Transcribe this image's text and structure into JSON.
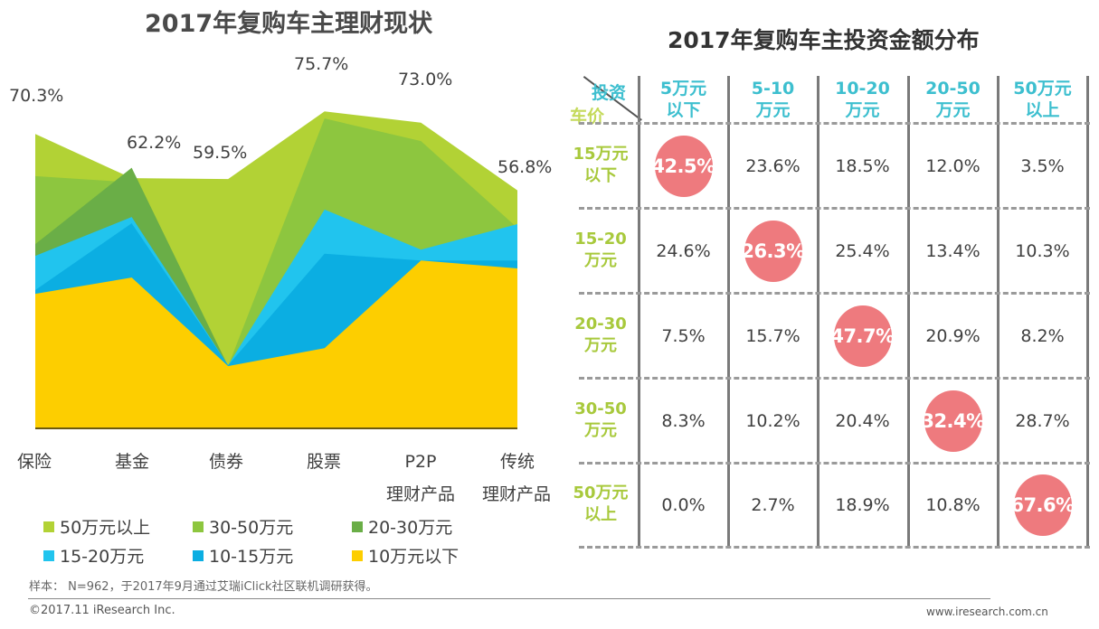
{
  "left_chart": {
    "title": "2017年复购车主理财现状"
  },
  "right_table": {
    "title": "2017年复购车主投资金额分布",
    "corner_top": "投资",
    "corner_bottom": "车价",
    "columns": [
      [
        "5万元",
        "以下"
      ],
      [
        "5-10",
        "万元"
      ],
      [
        "10-20",
        "万元"
      ],
      [
        "20-50",
        "万元"
      ],
      [
        "50万元",
        "以上"
      ]
    ],
    "rows": [
      {
        "label": [
          "15万元",
          "以下"
        ],
        "values": [
          "42.5%",
          "23.6%",
          "18.5%",
          "12.0%",
          "3.5%"
        ],
        "highlight": 0
      },
      {
        "label": [
          "15-20",
          "万元"
        ],
        "values": [
          "24.6%",
          "26.3%",
          "25.4%",
          "13.4%",
          "10.3%"
        ],
        "highlight": 1
      },
      {
        "label": [
          "20-30",
          "万元"
        ],
        "values": [
          "7.5%",
          "15.7%",
          "47.7%",
          "20.9%",
          "8.2%"
        ],
        "highlight": 2
      },
      {
        "label": [
          "30-50",
          "万元"
        ],
        "values": [
          "8.3%",
          "10.2%",
          "20.4%",
          "32.4%",
          "28.7%"
        ],
        "highlight": 3
      },
      {
        "label": [
          "50万元",
          "以上"
        ],
        "values": [
          "0.0%",
          "2.7%",
          "18.9%",
          "10.8%",
          "67.6%"
        ],
        "highlight": 4
      }
    ],
    "highlight_color": "#EE7A7E",
    "header_color": "#3DBFCF",
    "row_label_color": "#A8C93C"
  },
  "chart_data": [
    {
      "type": "area",
      "title": "2017年复购车主理财现状",
      "stacked": false,
      "categories": [
        [
          "保险"
        ],
        [
          "基金"
        ],
        [
          "债券"
        ],
        [
          "股票"
        ],
        [
          "P2P",
          "理财产品"
        ],
        [
          "传统",
          "理财产品"
        ]
      ],
      "peak_labels": [
        "70.3%",
        "62.2%",
        "59.5%",
        "75.7%",
        "73.0%",
        "56.8%"
      ],
      "peak_label_series": [
        0,
        2,
        0,
        0,
        0,
        0
      ],
      "ylim": [
        0,
        80
      ],
      "grid": false,
      "legend_position": "bottom",
      "series": [
        {
          "name": "50万元以上",
          "color": "#B2D235",
          "values": [
            70.3,
            59.7,
            59.5,
            75.7,
            73.0,
            56.8
          ]
        },
        {
          "name": "30-50万元",
          "color": "#8DC63F",
          "values": [
            60.2,
            58.7,
            14.7,
            74.0,
            68.6,
            47.8
          ]
        },
        {
          "name": "20-30万元",
          "color": "#6AAE47",
          "values": [
            43.9,
            62.2,
            14.7,
            25.0,
            40.0,
            38.0
          ]
        },
        {
          "name": "15-20万元",
          "color": "#21C4EE",
          "values": [
            41.1,
            50.4,
            14.9,
            52.2,
            42.6,
            48.7
          ]
        },
        {
          "name": "10-15万元",
          "color": "#0BAEE2",
          "values": [
            32.9,
            48.9,
            14.9,
            41.6,
            40.0,
            40.0
          ]
        },
        {
          "name": "10万元以下",
          "color": "#FDCE00",
          "values": [
            32.0,
            35.9,
            14.7,
            19.0,
            40.0,
            38.1
          ]
        }
      ]
    },
    {
      "type": "table",
      "title": "2017年复购车主投资金额分布",
      "row_axis": "车价",
      "column_axis": "投资",
      "columns": [
        "5万元以下",
        "5-10万元",
        "10-20万元",
        "20-50万元",
        "50万元以上"
      ],
      "rows": [
        "15万元以下",
        "15-20万元",
        "20-30万元",
        "30-50万元",
        "50万元以上"
      ],
      "values": [
        [
          42.5,
          23.6,
          18.5,
          12.0,
          3.5
        ],
        [
          24.6,
          26.3,
          25.4,
          13.4,
          10.3
        ],
        [
          7.5,
          15.7,
          47.7,
          20.9,
          8.2
        ],
        [
          8.3,
          10.2,
          20.4,
          32.4,
          28.7
        ],
        [
          0.0,
          2.7,
          18.9,
          10.8,
          67.6
        ]
      ]
    }
  ],
  "legend": [
    {
      "label": "50万元以上",
      "color": "#B2D235"
    },
    {
      "label": "30-50万元",
      "color": "#8DC63F"
    },
    {
      "label": "20-30万元",
      "color": "#6AAE47"
    },
    {
      "label": "15-20万元",
      "color": "#21C4EE"
    },
    {
      "label": "10-15万元",
      "color": "#0BAEE2"
    },
    {
      "label": "10万元以下",
      "color": "#FDCE00"
    }
  ],
  "footer": {
    "note": "样本： N=962，于2017年9月通过艾瑞iClick社区联机调研获得。",
    "copyright": "©2017.11 iResearch Inc.",
    "website": "www.iresearch.com.cn"
  }
}
